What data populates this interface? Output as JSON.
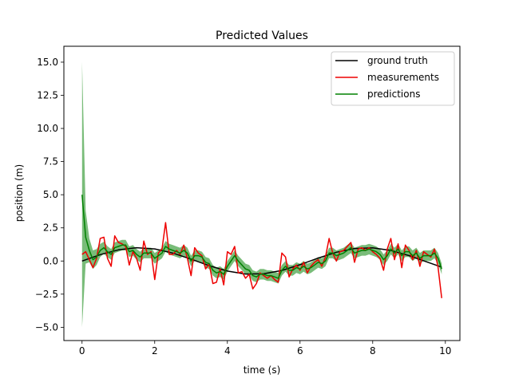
{
  "chart_data": {
    "type": "line",
    "title": "Predicted Values",
    "xlabel": "time (s)",
    "ylabel": "position (m)",
    "xlim": [
      -0.5,
      10.4
    ],
    "ylim": [
      -6.0,
      16.2
    ],
    "xticks": [
      0,
      2,
      4,
      6,
      8,
      10
    ],
    "xtick_labels": [
      "0",
      "2",
      "4",
      "6",
      "8",
      "10"
    ],
    "yticks": [
      -5.0,
      -2.5,
      0.0,
      2.5,
      5.0,
      7.5,
      10.0,
      12.5,
      15.0
    ],
    "ytick_labels": [
      "−5.0",
      "−2.5",
      "0.0",
      "2.5",
      "5.0",
      "7.5",
      "10.0",
      "12.5",
      "15.0"
    ],
    "grid": false,
    "legend_position": "top-right",
    "series": [
      {
        "name": "ground truth",
        "color": "#000000",
        "x": [
          0,
          0.5,
          1,
          1.5,
          2,
          2.5,
          3,
          3.5,
          4,
          4.5,
          5,
          5.5,
          6,
          6.5,
          7,
          7.5,
          8,
          8.5,
          9,
          9.5,
          9.9
        ],
        "values": [
          0,
          0.48,
          0.84,
          1.0,
          0.91,
          0.6,
          0.14,
          -0.35,
          -0.76,
          -0.98,
          -0.96,
          -0.71,
          -0.28,
          0.22,
          0.66,
          0.94,
          0.99,
          0.8,
          0.41,
          -0.08,
          -0.46
        ]
      },
      {
        "name": "measurements",
        "color": "#ee0000",
        "x": [
          0,
          0.1,
          0.2,
          0.3,
          0.4,
          0.5,
          0.6,
          0.7,
          0.8,
          0.9,
          1,
          1.1,
          1.2,
          1.3,
          1.4,
          1.5,
          1.6,
          1.7,
          1.8,
          1.9,
          2,
          2.1,
          2.2,
          2.3,
          2.4,
          2.5,
          2.6,
          2.7,
          2.8,
          2.9,
          3,
          3.1,
          3.2,
          3.3,
          3.4,
          3.5,
          3.6,
          3.7,
          3.8,
          3.9,
          4,
          4.1,
          4.2,
          4.3,
          4.4,
          4.5,
          4.6,
          4.7,
          4.8,
          4.9,
          5,
          5.1,
          5.2,
          5.3,
          5.4,
          5.5,
          5.6,
          5.7,
          5.8,
          5.9,
          6,
          6.1,
          6.2,
          6.3,
          6.4,
          6.5,
          6.6,
          6.7,
          6.8,
          6.9,
          7,
          7.1,
          7.2,
          7.3,
          7.4,
          7.5,
          7.6,
          7.7,
          7.8,
          7.9,
          8,
          8.1,
          8.2,
          8.3,
          8.4,
          8.5,
          8.6,
          8.7,
          8.8,
          8.9,
          9,
          9.1,
          9.2,
          9.3,
          9.4,
          9.5,
          9.6,
          9.7,
          9.8,
          9.9
        ],
        "values": [
          0.5,
          0.7,
          0.1,
          -0.5,
          0.2,
          1.7,
          1.8,
          0.2,
          -0.4,
          1.9,
          1.4,
          1.3,
          1.1,
          -0.3,
          0.7,
          0.2,
          -0.7,
          1.5,
          0.5,
          0.7,
          -1.4,
          0.6,
          0.9,
          2.9,
          0.5,
          0.5,
          0.8,
          0.5,
          1.2,
          0.2,
          -1.1,
          1.0,
          0.6,
          0.4,
          -0.6,
          -0.2,
          -1.7,
          -1.6,
          -0.6,
          -1.8,
          0.7,
          0.5,
          1.1,
          -0.9,
          -0.8,
          -1.3,
          -1.0,
          -2.1,
          -1.7,
          -0.9,
          -1.1,
          -1.3,
          -1.1,
          -1.4,
          -1.6,
          0.6,
          0.3,
          -1.2,
          -0.6,
          -0.3,
          -0.7,
          -0.1,
          -0.9,
          -0.4,
          -0.1,
          0.1,
          -0.4,
          0.3,
          1.7,
          0.6,
          0.0,
          0.7,
          0.8,
          1.1,
          1.4,
          -0.1,
          0.9,
          1.0,
          0.8,
          1.0,
          0.7,
          0.5,
          0.2,
          -0.7,
          0.9,
          1.7,
          0.1,
          1.3,
          -0.5,
          1.2,
          0.8,
          0.1,
          0.8,
          -0.4,
          0.7,
          0.5,
          0.3,
          0.9,
          -0.5,
          -2.8
        ]
      },
      {
        "name": "predictions",
        "color": "#008000",
        "band_color": "#4ca64c",
        "x": [
          0,
          0.1,
          0.2,
          0.3,
          0.4,
          0.5,
          0.6,
          0.7,
          0.8,
          0.9,
          1,
          1.1,
          1.2,
          1.3,
          1.4,
          1.5,
          1.6,
          1.7,
          1.8,
          1.9,
          2,
          2.1,
          2.2,
          2.3,
          2.4,
          2.5,
          2.6,
          2.7,
          2.8,
          2.9,
          3,
          3.1,
          3.2,
          3.3,
          3.4,
          3.5,
          3.6,
          3.7,
          3.8,
          3.9,
          4,
          4.1,
          4.2,
          4.3,
          4.4,
          4.5,
          4.6,
          4.7,
          4.8,
          4.9,
          5,
          5.1,
          5.2,
          5.3,
          5.4,
          5.5,
          5.6,
          5.7,
          5.8,
          5.9,
          6,
          6.1,
          6.2,
          6.3,
          6.4,
          6.5,
          6.6,
          6.7,
          6.8,
          6.9,
          7,
          7.1,
          7.2,
          7.3,
          7.4,
          7.5,
          7.6,
          7.7,
          7.8,
          7.9,
          8,
          8.1,
          8.2,
          8.3,
          8.4,
          8.5,
          8.6,
          8.7,
          8.8,
          8.9,
          9,
          9.1,
          9.2,
          9.3,
          9.4,
          9.5,
          9.6,
          9.7,
          9.8,
          9.9
        ],
        "values": [
          5.0,
          1.8,
          0.8,
          0.1,
          0.3,
          0.8,
          1.0,
          0.7,
          0.5,
          1.0,
          1.1,
          1.2,
          1.2,
          0.7,
          0.8,
          0.5,
          0.3,
          0.6,
          0.6,
          0.6,
          0.2,
          0.4,
          0.6,
          1.1,
          0.9,
          0.8,
          0.7,
          0.6,
          0.8,
          0.6,
          0.0,
          0.4,
          0.4,
          0.3,
          -0.1,
          -0.2,
          -0.7,
          -0.9,
          -0.8,
          -1.0,
          -0.4,
          0.0,
          0.4,
          0.0,
          -0.3,
          -0.6,
          -0.7,
          -1.1,
          -1.2,
          -1.0,
          -1.0,
          -1.1,
          -1.1,
          -1.2,
          -1.3,
          -0.7,
          -0.4,
          -0.7,
          -0.7,
          -0.5,
          -0.6,
          -0.4,
          -0.6,
          -0.5,
          -0.3,
          -0.1,
          -0.2,
          0.0,
          0.6,
          0.6,
          0.4,
          0.5,
          0.6,
          0.8,
          1.0,
          0.6,
          0.7,
          0.8,
          0.8,
          0.9,
          0.8,
          0.7,
          0.5,
          0.1,
          0.4,
          0.9,
          0.6,
          0.9,
          0.4,
          0.7,
          0.7,
          0.4,
          0.6,
          0.2,
          0.4,
          0.4,
          0.4,
          0.6,
          0.2,
          -0.6
        ],
        "band": [
          10.0,
          2.0,
          0.9,
          0.7,
          0.6,
          0.5,
          0.45,
          0.42,
          0.4,
          0.4,
          0.4,
          0.4,
          0.4,
          0.4,
          0.4,
          0.4,
          0.4,
          0.4,
          0.4,
          0.4,
          0.4,
          0.4,
          0.4,
          0.4,
          0.4,
          0.4,
          0.4,
          0.4,
          0.4,
          0.4,
          0.4,
          0.4,
          0.4,
          0.4,
          0.4,
          0.4,
          0.4,
          0.4,
          0.4,
          0.4,
          0.4,
          0.4,
          0.4,
          0.4,
          0.4,
          0.4,
          0.4,
          0.4,
          0.4,
          0.4,
          0.4,
          0.4,
          0.4,
          0.4,
          0.4,
          0.4,
          0.4,
          0.4,
          0.4,
          0.4,
          0.4,
          0.4,
          0.4,
          0.4,
          0.4,
          0.4,
          0.4,
          0.4,
          0.4,
          0.4,
          0.4,
          0.4,
          0.4,
          0.4,
          0.4,
          0.4,
          0.4,
          0.4,
          0.4,
          0.4,
          0.4,
          0.4,
          0.4,
          0.4,
          0.4,
          0.4,
          0.4,
          0.4,
          0.4,
          0.4,
          0.4,
          0.4,
          0.4,
          0.4,
          0.4,
          0.4,
          0.4,
          0.4,
          0.4,
          0.4
        ]
      }
    ]
  }
}
